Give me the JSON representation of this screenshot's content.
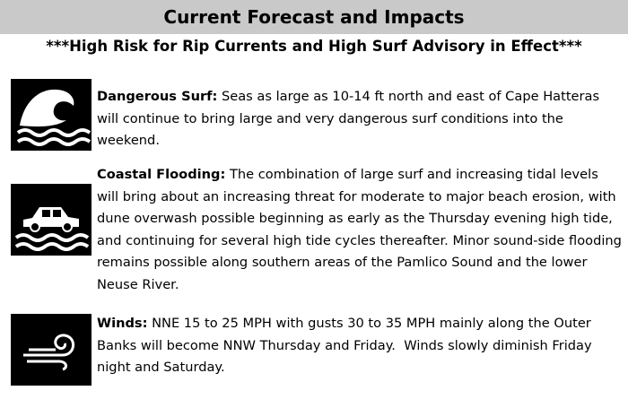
{
  "header": {
    "title": "Current Forecast and Impacts",
    "subtitle": "***High Risk for Rip Currents and High Surf Advisory in Effect***"
  },
  "items": [
    {
      "label": "Dangerous Surf:",
      "text": "Seas as large as 10-14 ft north and east of Cape Hatteras will continue to bring large and very dangerous surf conditions into the weekend."
    },
    {
      "label": "Coastal Flooding:",
      "text": "The combination of large surf and increasing tidal levels will bring about an increasing threat for moderate to major beach erosion, with dune overwash possible beginning as early as the Thursday evening high tide, and continuing for several high tide cycles thereafter. Minor sound-side flooding remains possible along southern areas of the Pamlico Sound and the lower Neuse River."
    },
    {
      "label": "Winds:",
      "text": "NNE 15 to 25 MPH with gusts 30 to 35 MPH mainly along the Outer Banks will become NNW Thursday and Friday.  Winds slowly diminish Friday night and Saturday."
    }
  ]
}
